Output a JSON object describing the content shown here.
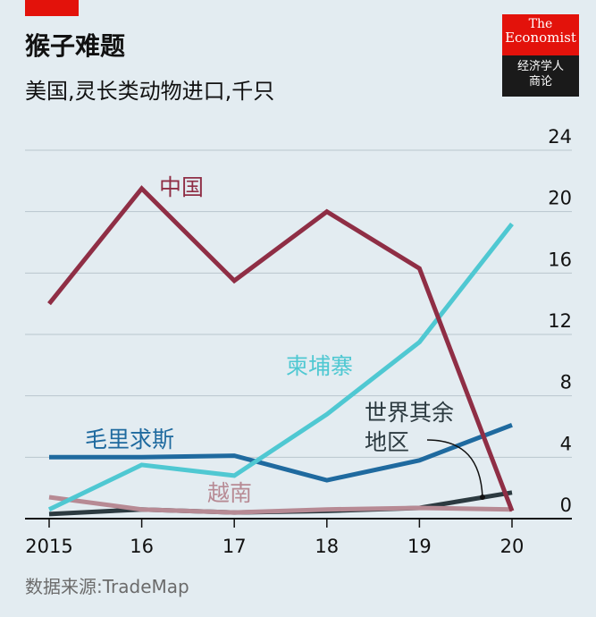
{
  "header": {
    "title": "猴子难题",
    "subtitle": "美国,灵长类动物进口,千只"
  },
  "logo": {
    "line1": "The",
    "line2": "Economist",
    "line3": "经济学人",
    "line4": "商论"
  },
  "source": "数据来源:TradeMap",
  "colors": {
    "background": "#e3ecf1",
    "china": "#8f2e45",
    "cambodia": "#4fc8d2",
    "mauritius": "#1f6a9f",
    "vietnam": "#b78a94",
    "rest_of_world": "#2c3a40",
    "brand_red": "#e3120b"
  },
  "chart_data": {
    "type": "line",
    "x": [
      2015,
      2016,
      2017,
      2018,
      2019,
      2020
    ],
    "x_tick_labels": [
      "2015",
      "16",
      "17",
      "18",
      "19",
      "20"
    ],
    "ylim": [
      0,
      24
    ],
    "y_ticks": [
      0,
      4,
      8,
      12,
      16,
      20,
      24
    ],
    "y_axis_side": "right",
    "grid": true,
    "series": [
      {
        "name": "中国",
        "key": "china",
        "values": [
          14.0,
          21.5,
          15.5,
          20.0,
          16.3,
          0.5
        ]
      },
      {
        "name": "柬埔寨",
        "key": "cambodia",
        "values": [
          0.6,
          3.5,
          2.8,
          6.8,
          11.5,
          19.2
        ]
      },
      {
        "name": "毛里求斯",
        "key": "mauritius",
        "values": [
          4.0,
          4.0,
          4.1,
          2.5,
          3.8,
          6.1
        ]
      },
      {
        "name": "越南",
        "key": "vietnam",
        "values": [
          1.4,
          0.6,
          0.4,
          0.6,
          0.7,
          0.6
        ]
      },
      {
        "name": "世界其余地区",
        "key": "rest_of_world",
        "values": [
          0.3,
          0.6,
          0.4,
          0.5,
          0.7,
          1.7
        ]
      }
    ]
  }
}
